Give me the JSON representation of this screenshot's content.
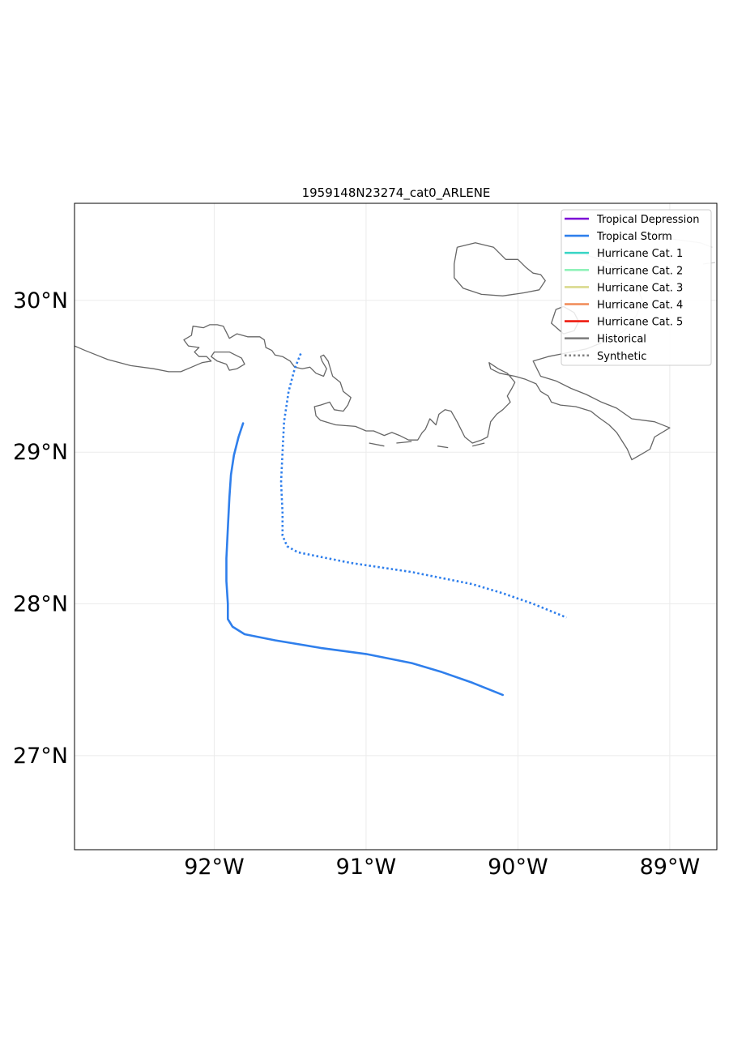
{
  "title": "1959148N23274_cat0_ARLENE",
  "map": {
    "lon_range": [
      -92.92,
      -88.69
    ],
    "lat_range": [
      26.38,
      30.64
    ],
    "gridlines": true,
    "lon_ticks": [
      {
        "value": -92,
        "label": "92°W"
      },
      {
        "value": -91,
        "label": "91°W"
      },
      {
        "value": -90,
        "label": "90°W"
      },
      {
        "value": -89,
        "label": "89°W"
      }
    ],
    "lat_ticks": [
      {
        "value": 30,
        "label": "30°N"
      },
      {
        "value": 29,
        "label": "29°N"
      },
      {
        "value": 28,
        "label": "28°N"
      },
      {
        "value": 27,
        "label": "27°N"
      }
    ],
    "coastline_color": "#666666"
  },
  "legend": {
    "position": "top-right",
    "items": [
      {
        "label": "Tropical Depression",
        "color": "#7b0ad6",
        "style": "solid"
      },
      {
        "label": "Tropical Storm",
        "color": "#2f7fec",
        "style": "solid"
      },
      {
        "label": "Hurricane Cat. 1",
        "color": "#3bd6c6",
        "style": "solid"
      },
      {
        "label": "Hurricane Cat. 2",
        "color": "#8ff2b9",
        "style": "solid"
      },
      {
        "label": "Hurricane Cat. 3",
        "color": "#dada8e",
        "style": "solid"
      },
      {
        "label": "Hurricane Cat. 4",
        "color": "#f08a56",
        "style": "solid"
      },
      {
        "label": "Hurricane Cat. 5",
        "color": "#ee1c10",
        "style": "solid"
      },
      {
        "label": "Historical",
        "color": "#808080",
        "style": "solid"
      },
      {
        "label": "Synthetic",
        "color": "#808080",
        "style": "dotted"
      }
    ]
  },
  "tracks": [
    {
      "kind": "historical",
      "category": "Tropical Storm",
      "color": "#2f7fec",
      "points": [
        [
          -91.81,
          29.19
        ],
        [
          -91.84,
          29.1
        ],
        [
          -91.87,
          28.98
        ],
        [
          -91.89,
          28.85
        ],
        [
          -91.9,
          28.7
        ],
        [
          -91.91,
          28.5
        ],
        [
          -91.92,
          28.3
        ],
        [
          -91.92,
          28.15
        ],
        [
          -91.91,
          28.0
        ],
        [
          -91.91,
          27.9
        ],
        [
          -91.88,
          27.85
        ],
        [
          -91.8,
          27.8
        ],
        [
          -91.6,
          27.76
        ],
        [
          -91.3,
          27.71
        ],
        [
          -91.0,
          27.67
        ],
        [
          -90.7,
          27.61
        ],
        [
          -90.5,
          27.55
        ],
        [
          -90.3,
          27.48
        ],
        [
          -90.1,
          27.4
        ]
      ]
    },
    {
      "kind": "synthetic",
      "category": "Tropical Storm",
      "color": "#2f7fec",
      "points": [
        [
          -91.43,
          29.65
        ],
        [
          -91.47,
          29.55
        ],
        [
          -91.51,
          29.4
        ],
        [
          -91.54,
          29.2
        ],
        [
          -91.55,
          29.0
        ],
        [
          -91.56,
          28.8
        ],
        [
          -91.55,
          28.6
        ],
        [
          -91.55,
          28.45
        ],
        [
          -91.52,
          28.38
        ],
        [
          -91.45,
          28.34
        ],
        [
          -91.3,
          28.31
        ],
        [
          -91.1,
          28.27
        ],
        [
          -90.9,
          28.24
        ],
        [
          -90.7,
          28.21
        ],
        [
          -90.5,
          28.17
        ],
        [
          -90.3,
          28.13
        ],
        [
          -90.1,
          28.07
        ],
        [
          -89.9,
          28.0
        ],
        [
          -89.68,
          27.91
        ]
      ]
    }
  ],
  "coastlines": [
    [
      [
        -92.92,
        29.7
      ],
      [
        -92.85,
        29.67
      ],
      [
        -92.7,
        29.61
      ],
      [
        -92.55,
        29.57
      ],
      [
        -92.4,
        29.55
      ],
      [
        -92.3,
        29.53
      ],
      [
        -92.22,
        29.53
      ],
      [
        -92.15,
        29.56
      ],
      [
        -92.08,
        29.59
      ],
      [
        -92.02,
        29.6
      ],
      [
        -92.05,
        29.63
      ],
      [
        -92.1,
        29.63
      ],
      [
        -92.13,
        29.66
      ],
      [
        -92.1,
        29.69
      ],
      [
        -92.17,
        29.7
      ],
      [
        -92.2,
        29.74
      ],
      [
        -92.15,
        29.77
      ],
      [
        -92.14,
        29.83
      ],
      [
        -92.07,
        29.82
      ],
      [
        -92.03,
        29.84
      ],
      [
        -91.98,
        29.84
      ],
      [
        -91.94,
        29.83
      ],
      [
        -91.9,
        29.75
      ],
      [
        -91.85,
        29.78
      ],
      [
        -91.78,
        29.76
      ],
      [
        -91.7,
        29.76
      ],
      [
        -91.67,
        29.74
      ],
      [
        -91.66,
        29.69
      ],
      [
        -91.62,
        29.67
      ],
      [
        -91.6,
        29.64
      ],
      [
        -91.55,
        29.63
      ],
      [
        -91.5,
        29.6
      ],
      [
        -91.47,
        29.56
      ],
      [
        -91.42,
        29.55
      ],
      [
        -91.37,
        29.56
      ],
      [
        -91.33,
        29.52
      ],
      [
        -91.28,
        29.5
      ],
      [
        -91.26,
        29.55
      ],
      [
        -91.29,
        29.6
      ],
      [
        -91.3,
        29.63
      ],
      [
        -91.28,
        29.64
      ],
      [
        -91.25,
        29.6
      ],
      [
        -91.22,
        29.5
      ],
      [
        -91.17,
        29.46
      ],
      [
        -91.15,
        29.4
      ],
      [
        -91.1,
        29.36
      ],
      [
        -91.12,
        29.31
      ],
      [
        -91.15,
        29.27
      ],
      [
        -91.21,
        29.28
      ],
      [
        -91.24,
        29.33
      ],
      [
        -91.3,
        29.31
      ],
      [
        -91.34,
        29.3
      ],
      [
        -91.33,
        29.24
      ],
      [
        -91.3,
        29.21
      ],
      [
        -91.2,
        29.18
      ],
      [
        -91.07,
        29.17
      ],
      [
        -91.0,
        29.14
      ],
      [
        -90.95,
        29.14
      ],
      [
        -90.88,
        29.11
      ],
      [
        -90.83,
        29.13
      ],
      [
        -90.78,
        29.11
      ],
      [
        -90.72,
        29.08
      ],
      [
        -90.66,
        29.08
      ],
      [
        -90.63,
        29.13
      ],
      [
        -90.61,
        29.15
      ],
      [
        -90.58,
        29.22
      ],
      [
        -90.54,
        29.18
      ],
      [
        -90.52,
        29.25
      ],
      [
        -90.48,
        29.28
      ],
      [
        -90.44,
        29.27
      ],
      [
        -90.4,
        29.2
      ],
      [
        -90.35,
        29.1
      ],
      [
        -90.3,
        29.06
      ],
      [
        -90.24,
        29.08
      ],
      [
        -90.2,
        29.1
      ],
      [
        -90.18,
        29.2
      ],
      [
        -90.14,
        29.25
      ],
      [
        -90.1,
        29.28
      ],
      [
        -90.05,
        29.33
      ],
      [
        -90.07,
        29.37
      ],
      [
        -90.04,
        29.42
      ],
      [
        -90.02,
        29.46
      ],
      [
        -90.07,
        29.52
      ],
      [
        -90.13,
        29.55
      ],
      [
        -90.19,
        29.59
      ],
      [
        -90.18,
        29.55
      ],
      [
        -90.12,
        29.52
      ],
      [
        -90.02,
        29.5
      ],
      [
        -89.95,
        29.48
      ],
      [
        -89.88,
        29.45
      ],
      [
        -89.85,
        29.4
      ],
      [
        -89.8,
        29.37
      ],
      [
        -89.78,
        29.33
      ],
      [
        -89.72,
        29.31
      ],
      [
        -89.62,
        29.3
      ],
      [
        -89.52,
        29.27
      ],
      [
        -89.47,
        29.23
      ],
      [
        -89.4,
        29.18
      ],
      [
        -89.35,
        29.13
      ],
      [
        -89.28,
        29.02
      ],
      [
        -89.25,
        28.95
      ],
      [
        -89.18,
        28.99
      ],
      [
        -89.13,
        29.02
      ],
      [
        -89.1,
        29.1
      ],
      [
        -89.0,
        29.16
      ],
      [
        -89.1,
        29.2
      ],
      [
        -89.25,
        29.22
      ],
      [
        -89.35,
        29.29
      ],
      [
        -89.45,
        29.33
      ],
      [
        -89.55,
        29.38
      ],
      [
        -89.65,
        29.42
      ],
      [
        -89.75,
        29.47
      ],
      [
        -89.85,
        29.5
      ],
      [
        -89.9,
        29.6
      ],
      [
        -89.8,
        29.63
      ],
      [
        -89.7,
        29.65
      ],
      [
        -89.55,
        29.68
      ],
      [
        -89.45,
        29.72
      ]
    ],
    [
      [
        -91.92,
        29.58
      ],
      [
        -91.98,
        29.6
      ],
      [
        -92.02,
        29.63
      ],
      [
        -92.0,
        29.66
      ],
      [
        -91.9,
        29.66
      ],
      [
        -91.82,
        29.62
      ],
      [
        -91.8,
        29.58
      ],
      [
        -91.85,
        29.55
      ],
      [
        -91.9,
        29.54
      ],
      [
        -91.92,
        29.58
      ]
    ],
    [
      [
        -90.4,
        30.35
      ],
      [
        -90.28,
        30.38
      ],
      [
        -90.16,
        30.35
      ],
      [
        -90.08,
        30.27
      ],
      [
        -90.0,
        30.27
      ],
      [
        -89.95,
        30.22
      ],
      [
        -89.9,
        30.18
      ],
      [
        -89.85,
        30.17
      ],
      [
        -89.82,
        30.13
      ],
      [
        -89.86,
        30.07
      ],
      [
        -89.96,
        30.05
      ],
      [
        -90.1,
        30.03
      ],
      [
        -90.24,
        30.04
      ],
      [
        -90.36,
        30.08
      ],
      [
        -90.42,
        30.15
      ],
      [
        -90.42,
        30.24
      ],
      [
        -90.4,
        30.35
      ]
    ],
    [
      [
        -89.7,
        29.96
      ],
      [
        -89.63,
        29.92
      ],
      [
        -89.6,
        29.86
      ],
      [
        -89.63,
        29.8
      ],
      [
        -89.7,
        29.78
      ],
      [
        -89.78,
        29.85
      ],
      [
        -89.75,
        29.94
      ],
      [
        -89.7,
        29.96
      ]
    ],
    [
      [
        -90.53,
        29.04
      ],
      [
        -90.46,
        29.03
      ]
    ],
    [
      [
        -90.3,
        29.04
      ],
      [
        -90.22,
        29.06
      ]
    ],
    [
      [
        -90.98,
        29.06
      ],
      [
        -90.88,
        29.04
      ]
    ],
    [
      [
        -90.8,
        29.06
      ],
      [
        -90.7,
        29.07
      ]
    ]
  ],
  "faint_coastlines": [
    [
      [
        -89.43,
        29.72
      ],
      [
        -89.3,
        29.8
      ],
      [
        -89.22,
        29.9
      ],
      [
        -89.18,
        30.0
      ],
      [
        -89.22,
        30.1
      ],
      [
        -89.3,
        30.2
      ],
      [
        -89.4,
        30.25
      ],
      [
        -89.55,
        30.3
      ]
    ],
    [
      [
        -89.3,
        30.4
      ],
      [
        -89.1,
        30.42
      ],
      [
        -88.95,
        30.4
      ],
      [
        -88.8,
        30.38
      ],
      [
        -88.72,
        30.35
      ]
    ],
    [
      [
        -88.78,
        30.24
      ],
      [
        -88.7,
        30.25
      ]
    ]
  ]
}
